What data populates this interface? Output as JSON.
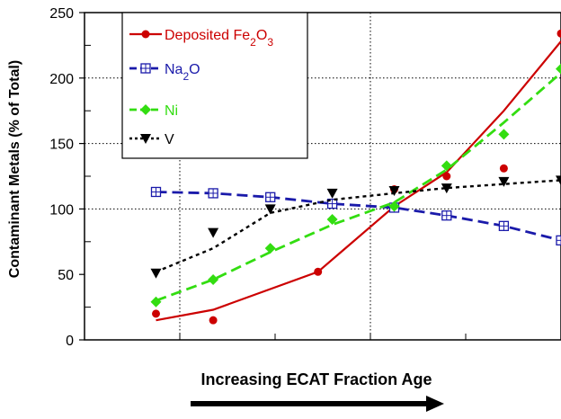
{
  "chart_data": {
    "type": "line",
    "ylabel": "Contaminant Metals (% of Total)",
    "xlabel": "Increasing ECAT Fraction Age",
    "ylim": [
      0,
      250
    ],
    "yticks": [
      "0",
      "50",
      "100",
      "150",
      "200",
      "250"
    ],
    "xlim": [
      0,
      1
    ],
    "grid": "dotted",
    "legend_placement": "top-left",
    "series": [
      {
        "name": "Deposited Fe2O3",
        "legend_parts": [
          "Deposited Fe",
          "2",
          "O",
          "3"
        ],
        "color": "#cc0000",
        "line_style": "solid",
        "marker": "circle",
        "points": [
          [
            0.15,
            20
          ],
          [
            0.27,
            15
          ],
          [
            0.49,
            52
          ],
          [
            0.65,
            115
          ],
          [
            0.76,
            125
          ],
          [
            0.88,
            131
          ],
          [
            1.0,
            234
          ]
        ],
        "fit": [
          [
            0.15,
            15
          ],
          [
            0.27,
            23
          ],
          [
            0.49,
            52
          ],
          [
            0.65,
            102
          ],
          [
            0.76,
            128
          ],
          [
            0.88,
            175
          ],
          [
            1.0,
            228
          ]
        ]
      },
      {
        "name": "Na2O",
        "legend_parts": [
          "Na",
          "2",
          "O",
          ""
        ],
        "color": "#1a1aaa",
        "line_style": "dashed",
        "marker": "square-cross",
        "points": [
          [
            0.15,
            113
          ],
          [
            0.27,
            112
          ],
          [
            0.39,
            109
          ],
          [
            0.52,
            104
          ],
          [
            0.65,
            101
          ],
          [
            0.76,
            95
          ],
          [
            0.88,
            87
          ],
          [
            1.0,
            76
          ]
        ]
      },
      {
        "name": "Ni",
        "legend_parts": [
          "Ni",
          "",
          "",
          ""
        ],
        "color": "#33dd11",
        "line_style": "dashed",
        "marker": "diamond",
        "points": [
          [
            0.15,
            29
          ],
          [
            0.27,
            46
          ],
          [
            0.39,
            70
          ],
          [
            0.52,
            92
          ],
          [
            0.65,
            102
          ],
          [
            0.76,
            133
          ],
          [
            0.88,
            157
          ],
          [
            1.0,
            207
          ]
        ],
        "fit": [
          [
            0.15,
            30
          ],
          [
            0.27,
            46
          ],
          [
            0.39,
            67
          ],
          [
            0.52,
            88
          ],
          [
            0.65,
            105
          ],
          [
            0.76,
            130
          ],
          [
            0.88,
            166
          ],
          [
            1.0,
            204
          ]
        ]
      },
      {
        "name": "V",
        "legend_parts": [
          "V",
          "",
          "",
          ""
        ],
        "color": "#000000",
        "line_style": "dotted",
        "marker": "triangle-down",
        "points": [
          [
            0.15,
            51
          ],
          [
            0.27,
            82
          ],
          [
            0.39,
            100
          ],
          [
            0.52,
            112
          ],
          [
            0.65,
            114
          ],
          [
            0.76,
            116
          ],
          [
            0.88,
            121
          ],
          [
            1.0,
            122
          ]
        ],
        "fit": [
          [
            0.15,
            52
          ],
          [
            0.27,
            70
          ],
          [
            0.39,
            97
          ],
          [
            0.52,
            107
          ],
          [
            0.65,
            112
          ],
          [
            0.76,
            116
          ],
          [
            0.88,
            119
          ],
          [
            1.0,
            122
          ]
        ]
      }
    ]
  }
}
